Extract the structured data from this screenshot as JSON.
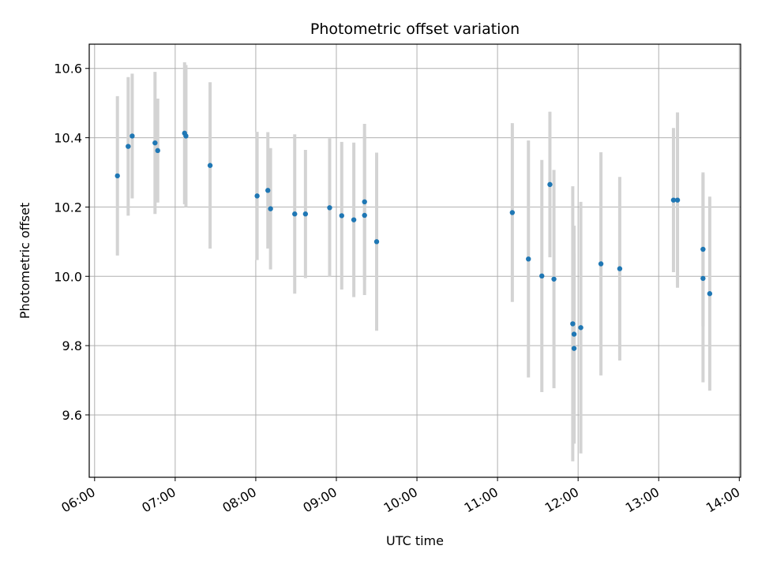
{
  "chart_data": {
    "type": "scatter",
    "title": "Photometric offset variation",
    "xlabel": "UTC time",
    "ylabel": "Photometric offset",
    "x_is_time": true,
    "xlim": [
      "05:56",
      "14:01"
    ],
    "ylim": [
      9.42,
      10.67
    ],
    "x_ticks": [
      "06:00",
      "07:00",
      "08:00",
      "09:00",
      "10:00",
      "11:00",
      "12:00",
      "13:00",
      "14:00"
    ],
    "y_ticks": [
      9.6,
      9.8,
      10.0,
      10.2,
      10.4,
      10.6
    ],
    "y_tick_labels": [
      "9.6",
      "9.8",
      "10.0",
      "10.2",
      "10.4",
      "10.6"
    ],
    "grid": true,
    "marker_color": "#1f77b4",
    "errorbar_color": "#d3d3d3",
    "points": [
      {
        "x": "06:17",
        "y": 10.29,
        "err": 0.23
      },
      {
        "x": "06:25",
        "y": 10.375,
        "err": 0.2
      },
      {
        "x": "06:28",
        "y": 10.405,
        "err": 0.18
      },
      {
        "x": "06:45",
        "y": 10.385,
        "err": 0.205
      },
      {
        "x": "06:47",
        "y": 10.363,
        "err": 0.15
      },
      {
        "x": "07:07",
        "y": 10.413,
        "err": 0.205
      },
      {
        "x": "07:08",
        "y": 10.405,
        "err": 0.205
      },
      {
        "x": "07:26",
        "y": 10.32,
        "err": 0.24
      },
      {
        "x": "08:01",
        "y": 10.232,
        "err": 0.185
      },
      {
        "x": "08:09",
        "y": 10.248,
        "err": 0.168
      },
      {
        "x": "08:11",
        "y": 10.195,
        "err": 0.175
      },
      {
        "x": "08:29",
        "y": 10.18,
        "err": 0.23
      },
      {
        "x": "08:37",
        "y": 10.18,
        "err": 0.185
      },
      {
        "x": "08:55",
        "y": 10.198,
        "err": 0.2
      },
      {
        "x": "09:04",
        "y": 10.175,
        "err": 0.213
      },
      {
        "x": "09:13",
        "y": 10.163,
        "err": 0.223
      },
      {
        "x": "09:21",
        "y": 10.215,
        "err": 0.225
      },
      {
        "x": "09:21",
        "y": 10.176,
        "err": 0.23
      },
      {
        "x": "09:30",
        "y": 10.1,
        "err": 0.257
      },
      {
        "x": "11:11",
        "y": 10.184,
        "err": 0.258
      },
      {
        "x": "11:23",
        "y": 10.05,
        "err": 0.342
      },
      {
        "x": "11:33",
        "y": 10.001,
        "err": 0.335
      },
      {
        "x": "11:39",
        "y": 10.265,
        "err": 0.21
      },
      {
        "x": "11:42",
        "y": 9.992,
        "err": 0.315
      },
      {
        "x": "11:56",
        "y": 9.863,
        "err": 0.397
      },
      {
        "x": "11:57",
        "y": 9.833,
        "err": 0.313
      },
      {
        "x": "11:57",
        "y": 9.792,
        "err": 0.275
      },
      {
        "x": "12:02",
        "y": 9.852,
        "err": 0.363
      },
      {
        "x": "12:17",
        "y": 10.036,
        "err": 0.322
      },
      {
        "x": "12:31",
        "y": 10.022,
        "err": 0.265
      },
      {
        "x": "13:11",
        "y": 10.22,
        "err": 0.208
      },
      {
        "x": "13:14",
        "y": 10.22,
        "err": 0.253
      },
      {
        "x": "13:33",
        "y": 10.078,
        "err": 0.222
      },
      {
        "x": "13:33",
        "y": 9.994,
        "err": 0.3
      },
      {
        "x": "13:38",
        "y": 9.95,
        "err": 0.28
      }
    ]
  }
}
